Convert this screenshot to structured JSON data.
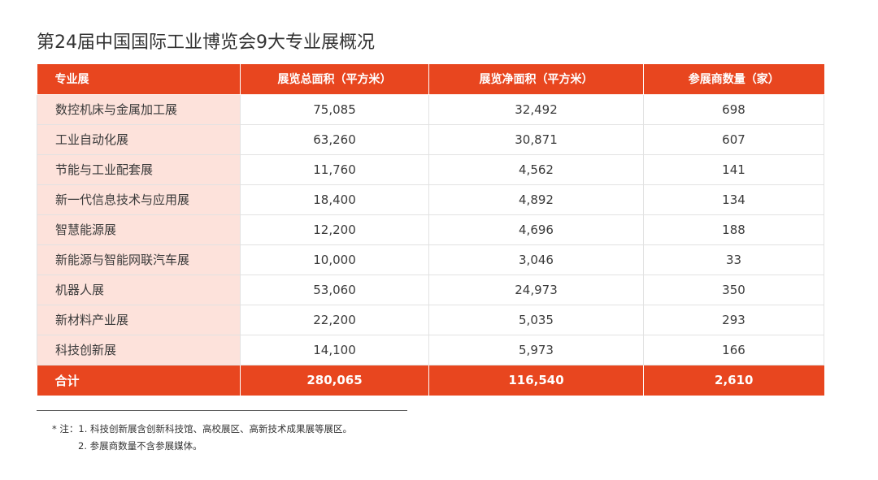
{
  "title": "第24届中国国际工业博览会9大专业展概况",
  "chart_data": {
    "type": "table",
    "columns": [
      "专业展",
      "展览总面积（平方米）",
      "展览净面积（平方米）",
      "参展商数量（家）"
    ],
    "rows": [
      [
        "数控机床与金属加工展",
        "75,085",
        "32,492",
        "698"
      ],
      [
        "工业自动化展",
        "63,260",
        "30,871",
        "607"
      ],
      [
        "节能与工业配套展",
        "11,760",
        "4,562",
        "141"
      ],
      [
        "新一代信息技术与应用展",
        "18,400",
        "4,892",
        "134"
      ],
      [
        "智慧能源展",
        "12,200",
        "4,696",
        "188"
      ],
      [
        "新能源与智能网联汽车展",
        "10,000",
        "3,046",
        "33"
      ],
      [
        "机器人展",
        "53,060",
        "24,973",
        "350"
      ],
      [
        "新材料产业展",
        "22,200",
        "5,035",
        "293"
      ],
      [
        "科技创新展",
        "14,100",
        "5,973",
        "166"
      ]
    ],
    "total": [
      "合计",
      "280,065",
      "116,540",
      "2,610"
    ]
  },
  "notes": [
    "* 注：1. 科技创新展含创新科技馆、高校展区、高新技术成果展等展区。",
    "2. 参展商数量不含参展媒体。"
  ],
  "colors": {
    "header_bg": "#e8461f",
    "first_column_bg": "#fde2db"
  }
}
